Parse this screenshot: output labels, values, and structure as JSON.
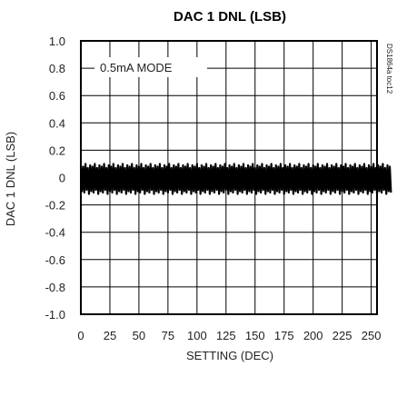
{
  "chart_data": {
    "type": "line",
    "title": "DAC 1 DNL (LSB)",
    "xlabel": "SETTING (DEC)",
    "ylabel": "DAC 1 DNL (LSB)",
    "xlim": [
      0,
      255
    ],
    "ylim": [
      -1.0,
      1.0
    ],
    "x_ticks": [
      0,
      25,
      50,
      75,
      100,
      125,
      150,
      175,
      200,
      225,
      250
    ],
    "x_tick_labels": [
      "0",
      "25",
      "50",
      "75",
      "100",
      "125",
      "150",
      "175",
      "200",
      "225",
      "250"
    ],
    "y_ticks": [
      1.0,
      0.8,
      0.6,
      0.4,
      0.2,
      0,
      -0.2,
      -0.4,
      -0.6,
      -0.8,
      -1.0
    ],
    "y_tick_labels": [
      "1.0",
      "0.8",
      "0.6",
      "0.4",
      "0.2",
      "0",
      "-0.2",
      "-0.4",
      "-0.6",
      "-0.8",
      "-1.0"
    ],
    "grid": true,
    "annotation": "0.5mA MODE",
    "figure_code": "DS1864a toc12",
    "series": [
      {
        "values": [
          0.09,
          -0.1,
          0.08,
          -0.11,
          0.1,
          -0.09,
          0.07,
          -0.12,
          0.09,
          -0.1,
          0.08,
          -0.11,
          0.1,
          -0.09,
          0.07,
          -0.12,
          0.09,
          -0.1,
          0.08,
          -0.11,
          0.1,
          -0.09,
          0.07,
          -0.12,
          0.09,
          -0.1,
          0.08,
          -0.11,
          0.1,
          -0.09,
          0.07,
          -0.12,
          0.09,
          -0.1,
          0.08,
          -0.11,
          0.1,
          -0.09,
          0.07,
          -0.12,
          0.09,
          -0.1,
          0.08,
          -0.11,
          0.1,
          -0.09,
          0.07,
          -0.12,
          0.09,
          -0.1,
          0.08,
          -0.11,
          0.1,
          -0.09,
          0.07,
          -0.12,
          0.09,
          -0.1,
          0.08,
          -0.11,
          0.1,
          -0.09,
          0.07,
          -0.12,
          0.09,
          -0.1,
          0.08,
          -0.11,
          0.1,
          -0.09,
          0.07,
          -0.12,
          0.09,
          -0.1,
          0.08,
          -0.11,
          0.1,
          -0.09,
          0.07,
          -0.12,
          0.09,
          -0.1,
          0.08,
          -0.11,
          0.1,
          -0.09,
          0.07,
          -0.12,
          0.09,
          -0.1,
          0.08,
          -0.11,
          0.1,
          -0.09,
          0.07,
          -0.12,
          0.09,
          -0.1,
          0.08,
          -0.11,
          0.1,
          -0.09,
          0.07,
          -0.12,
          0.09,
          -0.1,
          0.08,
          -0.11,
          0.1,
          -0.09,
          0.07,
          -0.12,
          0.09,
          -0.1,
          0.08,
          -0.11,
          0.1,
          -0.09,
          0.07,
          -0.12,
          0.09,
          -0.1,
          0.08,
          -0.11,
          0.1,
          -0.09,
          0.07,
          -0.12,
          0.09,
          -0.1,
          0.08,
          -0.11,
          0.1,
          -0.09,
          0.07,
          -0.12,
          0.09,
          -0.1,
          0.08,
          -0.11,
          0.1,
          -0.09,
          0.07,
          -0.12,
          0.09,
          -0.1,
          0.08,
          -0.11,
          0.1,
          -0.09,
          0.07,
          -0.12,
          0.09,
          -0.1,
          0.08,
          -0.11,
          0.1,
          -0.09,
          0.07,
          -0.12,
          0.09,
          -0.1,
          0.08,
          -0.11,
          0.1,
          -0.09,
          0.07,
          -0.12,
          0.09,
          -0.1,
          0.08,
          -0.11,
          0.1,
          -0.09,
          0.07,
          -0.12,
          0.09,
          -0.1,
          0.08,
          -0.11,
          0.1,
          -0.09,
          0.07,
          -0.12,
          0.09,
          -0.1,
          0.08,
          -0.11,
          0.1,
          -0.09,
          0.07,
          -0.12,
          0.09,
          -0.1,
          0.08,
          -0.11,
          0.1,
          -0.09,
          0.07,
          -0.12,
          0.09,
          -0.1,
          0.08,
          -0.11,
          0.1,
          -0.09,
          0.07,
          -0.12,
          0.09,
          -0.1,
          0.08,
          -0.11,
          0.1,
          -0.09,
          0.07,
          -0.12,
          0.09,
          -0.1,
          0.08,
          -0.11,
          0.1,
          -0.09,
          0.07,
          -0.12,
          0.09,
          -0.1,
          0.08,
          -0.11,
          0.1,
          -0.09,
          0.07,
          -0.12,
          0.09,
          -0.1,
          0.08,
          -0.11,
          0.1,
          -0.09,
          0.07,
          -0.12,
          0.09,
          -0.1,
          0.08,
          -0.11,
          0.1,
          -0.09,
          0.07,
          -0.12,
          0.09,
          -0.1,
          0.08,
          -0.11,
          0.1,
          -0.09,
          0.07,
          -0.12,
          0.09,
          -0.1,
          0.08,
          -0.11,
          0.1,
          -0.09,
          0.07,
          -0.12,
          0.09,
          -0.1,
          0.08,
          -0.11
        ]
      }
    ]
  },
  "colors": {
    "line": "#000000",
    "grid": "#000000",
    "background": "#ffffff"
  }
}
